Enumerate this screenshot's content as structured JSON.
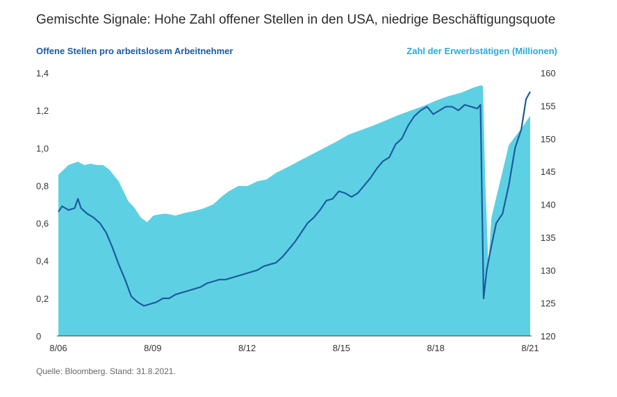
{
  "chart_data": {
    "type": "line+area",
    "title": "Gemischte Signale: Hohe Zahl offener Stellen in den USA, niedrige Beschäftigungsquote",
    "left_axis_title": "Offene Stellen pro arbeitslosem Arbeitnehmer",
    "right_axis_title": "Zahl der Erwerbstätigen (Millionen)",
    "source": "Quelle: Bloomberg. Stand: 31.8.2021.",
    "x_ticks": [
      "8/06",
      "8/09",
      "8/12",
      "8/15",
      "8/18",
      "8/21"
    ],
    "x_range": [
      2006.58,
      2021.58
    ],
    "y_left": {
      "min": 0,
      "max": 1.4,
      "ticks": [
        "0",
        "0,2",
        "0,4",
        "0,6",
        "0,8",
        "1,0",
        "1,2",
        "1,4"
      ]
    },
    "y_right": {
      "min": 120,
      "max": 160,
      "ticks": [
        "120",
        "125",
        "130",
        "135",
        "140",
        "145",
        "150",
        "155",
        "160"
      ]
    },
    "colors": {
      "area": "#5dd1e3",
      "line": "#1c5a9e"
    },
    "series": [
      {
        "name": "Zahl der Erwerbstätigen (Millionen)",
        "axis": "right",
        "kind": "area",
        "x": [
          2006.58,
          2006.9,
          2007.2,
          2007.4,
          2007.6,
          2007.8,
          2008.0,
          2008.2,
          2008.5,
          2008.8,
          2009.0,
          2009.2,
          2009.4,
          2009.6,
          2009.8,
          2010.0,
          2010.3,
          2010.6,
          2010.9,
          2011.2,
          2011.5,
          2011.8,
          2012.0,
          2012.3,
          2012.6,
          2012.9,
          2013.2,
          2013.5,
          2013.8,
          2014.2,
          2014.6,
          2015.0,
          2015.4,
          2015.8,
          2016.2,
          2016.6,
          2017.0,
          2017.4,
          2017.8,
          2018.2,
          2018.6,
          2019.0,
          2019.4,
          2019.8,
          2020.0,
          2020.08,
          2020.15,
          2020.25,
          2020.35,
          2020.5,
          2020.7,
          2020.9,
          2021.1,
          2021.3,
          2021.58
        ],
        "values": [
          144.5,
          146.0,
          146.5,
          146.0,
          146.2,
          146.0,
          146.0,
          145.3,
          143.5,
          140.5,
          139.5,
          138.0,
          137.3,
          138.3,
          138.5,
          138.6,
          138.3,
          138.7,
          139.0,
          139.4,
          140.0,
          141.3,
          142.0,
          142.8,
          142.8,
          143.5,
          143.8,
          144.8,
          145.5,
          146.5,
          147.5,
          148.5,
          149.5,
          150.6,
          151.3,
          152.0,
          152.8,
          153.6,
          154.3,
          155.0,
          155.8,
          156.5,
          157.0,
          157.8,
          158.1,
          158.0,
          144.0,
          131.0,
          138.0,
          141.0,
          145.0,
          149.0,
          150.3,
          151.5,
          153.5
        ]
      },
      {
        "name": "Offene Stellen pro arbeitslosem Arbeitnehmer",
        "axis": "left",
        "kind": "line",
        "x": [
          2006.58,
          2006.7,
          2006.9,
          2007.1,
          2007.2,
          2007.3,
          2007.5,
          2007.7,
          2007.9,
          2008.1,
          2008.3,
          2008.5,
          2008.7,
          2008.9,
          2009.1,
          2009.3,
          2009.5,
          2009.7,
          2009.9,
          2010.1,
          2010.3,
          2010.5,
          2010.7,
          2010.9,
          2011.1,
          2011.3,
          2011.5,
          2011.7,
          2011.9,
          2012.1,
          2012.3,
          2012.5,
          2012.7,
          2012.9,
          2013.1,
          2013.3,
          2013.5,
          2013.7,
          2013.9,
          2014.1,
          2014.3,
          2014.5,
          2014.7,
          2014.9,
          2015.1,
          2015.3,
          2015.5,
          2015.7,
          2015.9,
          2016.1,
          2016.3,
          2016.5,
          2016.7,
          2016.9,
          2017.1,
          2017.3,
          2017.5,
          2017.7,
          2017.9,
          2018.1,
          2018.3,
          2018.5,
          2018.7,
          2018.9,
          2019.1,
          2019.3,
          2019.5,
          2019.7,
          2019.9,
          2020.0,
          2020.1,
          2020.2,
          2020.3,
          2020.5,
          2020.7,
          2020.9,
          2021.1,
          2021.3,
          2021.45,
          2021.58
        ],
        "values": [
          0.66,
          0.69,
          0.67,
          0.68,
          0.73,
          0.68,
          0.65,
          0.63,
          0.6,
          0.55,
          0.47,
          0.38,
          0.3,
          0.21,
          0.18,
          0.16,
          0.17,
          0.18,
          0.2,
          0.2,
          0.22,
          0.23,
          0.24,
          0.25,
          0.26,
          0.28,
          0.29,
          0.3,
          0.3,
          0.31,
          0.32,
          0.33,
          0.34,
          0.35,
          0.37,
          0.38,
          0.39,
          0.42,
          0.46,
          0.5,
          0.55,
          0.6,
          0.63,
          0.67,
          0.72,
          0.73,
          0.77,
          0.76,
          0.74,
          0.76,
          0.8,
          0.84,
          0.89,
          0.93,
          0.95,
          1.02,
          1.05,
          1.12,
          1.17,
          1.2,
          1.22,
          1.18,
          1.2,
          1.22,
          1.22,
          1.2,
          1.23,
          1.22,
          1.21,
          1.23,
          0.2,
          0.35,
          0.44,
          0.6,
          0.65,
          0.8,
          1.0,
          1.1,
          1.26,
          1.3
        ]
      }
    ]
  }
}
